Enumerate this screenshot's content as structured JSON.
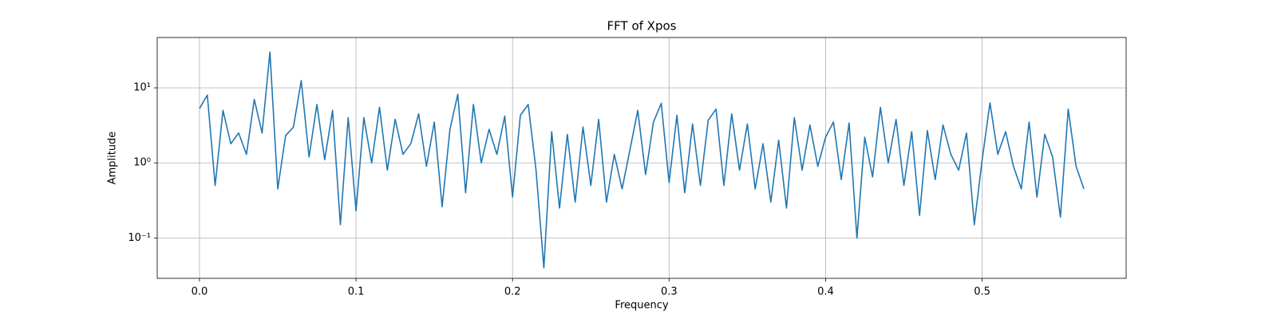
{
  "chart_data": {
    "type": "line",
    "title": "FFT of Xpos",
    "x_label": "Frequency",
    "y_label": "Amplitude",
    "x": [
      0,
      0.005,
      0.01,
      0.015,
      0.02,
      0.025,
      0.03,
      0.035,
      0.04,
      0.045,
      0.05,
      0.055,
      0.06,
      0.065,
      0.07,
      0.075,
      0.08,
      0.085,
      0.09,
      0.095,
      0.1,
      0.105,
      0.11,
      0.115,
      0.12,
      0.125,
      0.13,
      0.135,
      0.14,
      0.145,
      0.15,
      0.155,
      0.16,
      0.165,
      0.17,
      0.175,
      0.18,
      0.185,
      0.19,
      0.195,
      0.2,
      0.205,
      0.21,
      0.215,
      0.22,
      0.225,
      0.23,
      0.235,
      0.24,
      0.245,
      0.25,
      0.255,
      0.26,
      0.265,
      0.27,
      0.275,
      0.28,
      0.285,
      0.29,
      0.295,
      0.3,
      0.305,
      0.31,
      0.315,
      0.32,
      0.325,
      0.33,
      0.335,
      0.34,
      0.345,
      0.35,
      0.355,
      0.36,
      0.365,
      0.37,
      0.375,
      0.38,
      0.385,
      0.39,
      0.395,
      0.4,
      0.405,
      0.41,
      0.415,
      0.42,
      0.425,
      0.43,
      0.435,
      0.44,
      0.445,
      0.45,
      0.455,
      0.46,
      0.465,
      0.47,
      0.475,
      0.48,
      0.485,
      0.49,
      0.495,
      0.5,
      0.505,
      0.51,
      0.515,
      0.52,
      0.525,
      0.53,
      0.535,
      0.54,
      0.545,
      0.55,
      0.555,
      0.56,
      0.565
    ],
    "values": [
      5.3,
      8,
      0.5,
      5,
      1.8,
      2.5,
      1.3,
      7,
      2.5,
      30,
      0.45,
      2.3,
      3,
      12.5,
      1.2,
      6,
      1.1,
      5,
      0.15,
      4,
      0.23,
      4,
      1,
      5.5,
      0.8,
      3.8,
      1.3,
      1.8,
      4.5,
      0.9,
      3.5,
      0.26,
      2.8,
      8.2,
      0.4,
      6,
      1,
      2.8,
      1.3,
      4.2,
      0.35,
      4.3,
      6,
      0.8,
      0.04,
      2.6,
      0.25,
      2.4,
      0.3,
      3,
      0.5,
      3.8,
      0.3,
      1.3,
      0.45,
      1.5,
      5,
      0.7,
      3.5,
      6.2,
      0.55,
      4.3,
      0.4,
      3.3,
      0.5,
      3.7,
      5.2,
      0.5,
      4.5,
      0.8,
      3.3,
      0.45,
      1.8,
      0.3,
      2,
      0.25,
      4,
      0.8,
      3.2,
      0.9,
      2.2,
      3.5,
      0.6,
      3.4,
      0.1,
      2.2,
      0.65,
      5.5,
      1,
      3.8,
      0.5,
      2.6,
      0.2,
      2.7,
      0.6,
      3.2,
      1.3,
      0.8,
      2.5,
      0.15,
      1.1,
      6.3,
      1.3,
      2.6,
      0.9,
      0.45,
      3.5,
      0.35,
      2.4,
      1.2,
      0.19,
      5.2,
      0.9,
      0.45
    ],
    "color": "#1f77b4",
    "xlim": [
      -0.027,
      0.592
    ],
    "ylim": [
      0.029,
      46.8
    ],
    "ylog": true,
    "grid": true,
    "xticks": [
      {
        "value": 0,
        "label": "0.0"
      },
      0.1,
      0.2,
      0.3,
      0.4,
      0.5
    ],
    "yticks": [
      {
        "value": 0.1,
        "label": "10⁻¹"
      },
      {
        "value": 1,
        "label": "10⁰"
      },
      {
        "value": 10,
        "label": "10¹"
      }
    ]
  }
}
